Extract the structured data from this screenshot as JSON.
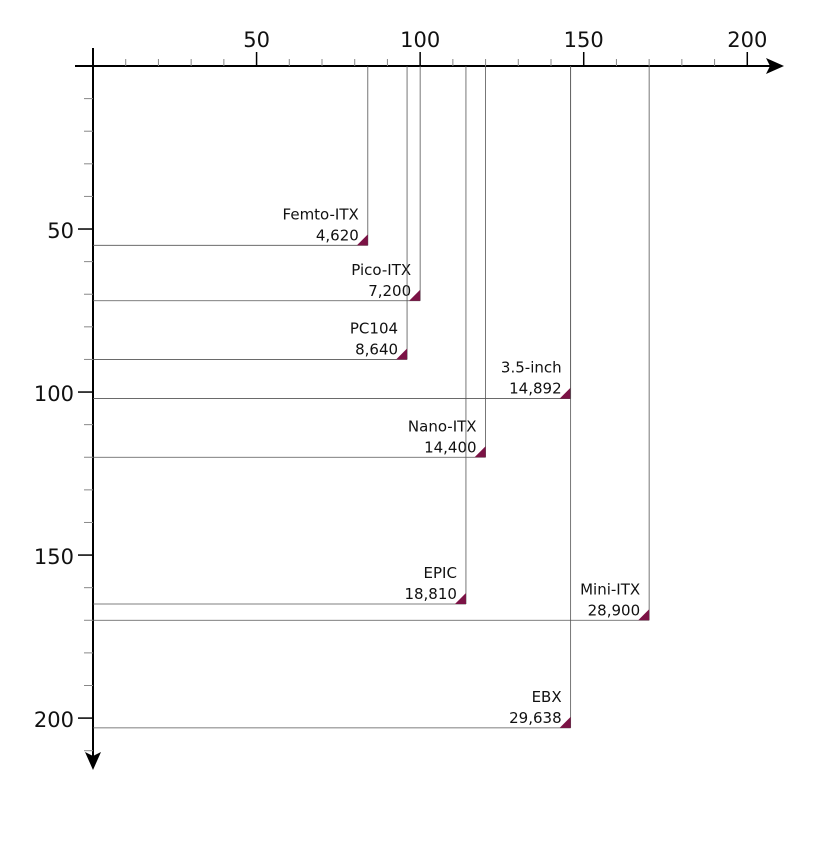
{
  "chart_data": {
    "type": "corner-sizes",
    "categories": [
      "Femto-ITX",
      "Pico-ITX",
      "PC104",
      "3.5-inch",
      "Nano-ITX",
      "EPIC",
      "Mini-ITX",
      "EBX"
    ],
    "x": [
      84,
      100,
      96,
      146,
      120,
      114,
      170,
      146
    ],
    "y": [
      55,
      72,
      90,
      102,
      120,
      165,
      170,
      203
    ],
    "values": [
      4620,
      7200,
      8640,
      14892,
      14400,
      18810,
      28900,
      29638
    ],
    "value_labels": [
      "4,620",
      "7,200",
      "8,640",
      "14,892",
      "14,400",
      "18,810",
      "28,900",
      "29,638"
    ],
    "color": "#7b1245",
    "xlim": [
      0,
      210
    ],
    "ylim": [
      0,
      215
    ],
    "xticks": [
      50,
      100,
      150,
      200
    ],
    "yticks": [
      50,
      100,
      150,
      200
    ],
    "xminorticks": [
      10,
      20,
      30,
      40,
      60,
      70,
      80,
      90,
      110,
      120,
      130,
      140,
      160,
      170,
      180,
      190
    ],
    "yminorticks": [
      10,
      20,
      30,
      40,
      60,
      70,
      80,
      90,
      110,
      120,
      130,
      140,
      160,
      170,
      180,
      190,
      210
    ]
  }
}
